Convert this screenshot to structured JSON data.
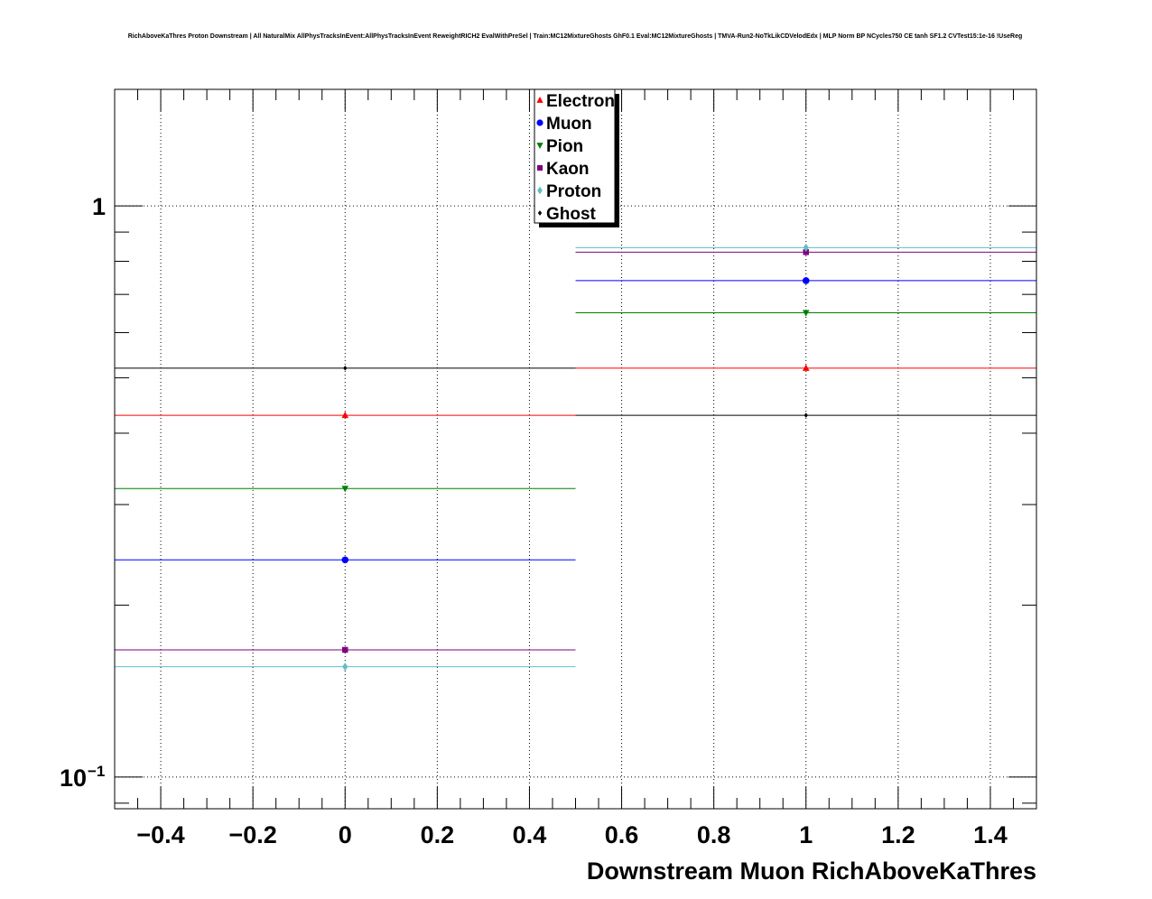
{
  "chart_data": {
    "type": "scatter",
    "title": "RichAboveKaThres Proton Downstream | All NaturalMix AllPhysTracksInEvent:AllPhysTracksInEvent ReweightRICH2 EvalWithPreSel | Train:MC12MixtureGhosts GhF0.1 Eval:MC12MixtureGhosts | TMVA-Run2-NoTkLikCDVelodEdx | MLP Norm BP NCycles750 CE tanh SF1.2 CVTest15:1e-16 !UseReg",
    "xlabel": "Downstream Muon RichAboveKaThres",
    "ylabel": "",
    "xlim": [
      -0.5,
      1.5
    ],
    "ylim": [
      0.088,
      1.6
    ],
    "ylog": true,
    "grid": true,
    "legend_position": "top-center",
    "x_ticks": [
      {
        "value": -0.4,
        "label": "−0.4"
      },
      {
        "value": -0.2,
        "label": "−0.2"
      },
      {
        "value": 0,
        "label": "0"
      },
      {
        "value": 0.2,
        "label": "0.2"
      },
      {
        "value": 0.4,
        "label": "0.4"
      },
      {
        "value": 0.6,
        "label": "0.6"
      },
      {
        "value": 0.8,
        "label": "0.8"
      },
      {
        "value": 1,
        "label": "1"
      },
      {
        "value": 1.2,
        "label": "1.2"
      },
      {
        "value": 1.4,
        "label": "1.4"
      }
    ],
    "y_ticks": [
      {
        "value": 1,
        "label": "1",
        "sup": ""
      },
      {
        "value": 0.1,
        "label": "10",
        "sup": "−1"
      }
    ],
    "bins": [
      {
        "x": 0,
        "xlow": -0.5,
        "xhigh": 0.5
      },
      {
        "x": 1,
        "xlow": 0.5,
        "xhigh": 1.5
      }
    ],
    "series": [
      {
        "name": "Electron",
        "color": "#ff0000",
        "marker": "triangle-up",
        "values": [
          0.43,
          0.52
        ]
      },
      {
        "name": "Muon",
        "color": "#0000ff",
        "marker": "circle",
        "values": [
          0.24,
          0.74
        ]
      },
      {
        "name": "Pion",
        "color": "#008000",
        "marker": "triangle-down",
        "values": [
          0.32,
          0.65
        ]
      },
      {
        "name": "Kaon",
        "color": "#800080",
        "marker": "square",
        "values": [
          0.167,
          0.83
        ]
      },
      {
        "name": "Proton",
        "color": "#5fbfc8",
        "marker": "diamond",
        "values": [
          0.156,
          0.845
        ]
      },
      {
        "name": "Ghost",
        "color": "#000000",
        "marker": "star",
        "values": [
          0.52,
          0.43
        ]
      }
    ]
  }
}
